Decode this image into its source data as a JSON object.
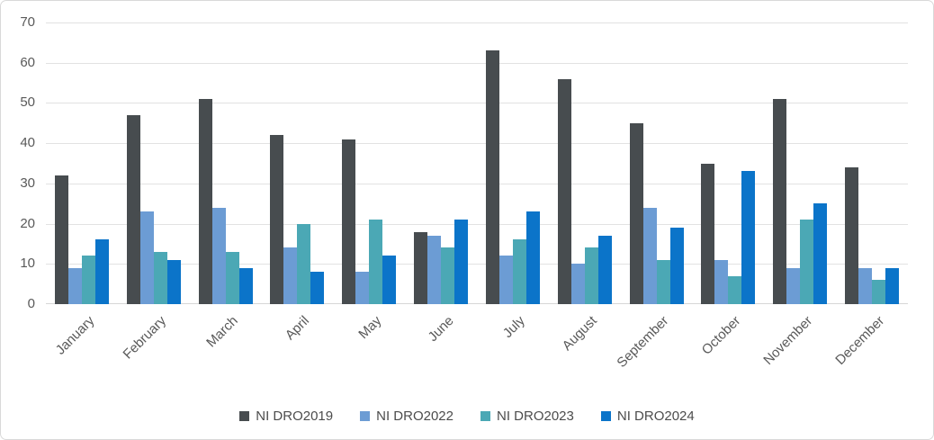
{
  "chart_data": {
    "type": "bar",
    "title": "",
    "categories": [
      "January",
      "February",
      "March",
      "April",
      "May",
      "June",
      "July",
      "August",
      "September",
      "October",
      "November",
      "December"
    ],
    "series": [
      {
        "name": "NI DRO2019",
        "color": "#474c4f",
        "values": [
          32,
          47,
          51,
          42,
          41,
          18,
          63,
          56,
          45,
          35,
          51,
          34
        ]
      },
      {
        "name": "NI DRO2022",
        "color": "#6c9cd4",
        "values": [
          9,
          23,
          24,
          14,
          8,
          17,
          12,
          10,
          24,
          11,
          9,
          9
        ]
      },
      {
        "name": "NI DRO2023",
        "color": "#4ba8b5",
        "values": [
          12,
          13,
          13,
          20,
          21,
          14,
          16,
          14,
          11,
          7,
          21,
          6
        ]
      },
      {
        "name": "NI DRO2024",
        "color": "#0b74c9",
        "values": [
          16,
          11,
          9,
          8,
          12,
          21,
          23,
          17,
          19,
          33,
          25,
          9
        ]
      }
    ],
    "xlabel": "",
    "ylabel": "",
    "ylim": [
      0,
      70
    ],
    "ytick_step": 10,
    "y_ticks": [
      0,
      10,
      20,
      30,
      40,
      50,
      60,
      70
    ],
    "grid": true,
    "gridline_color": "#e2e2e2",
    "axis_text_color": "#595959",
    "legend_position": "bottom"
  }
}
